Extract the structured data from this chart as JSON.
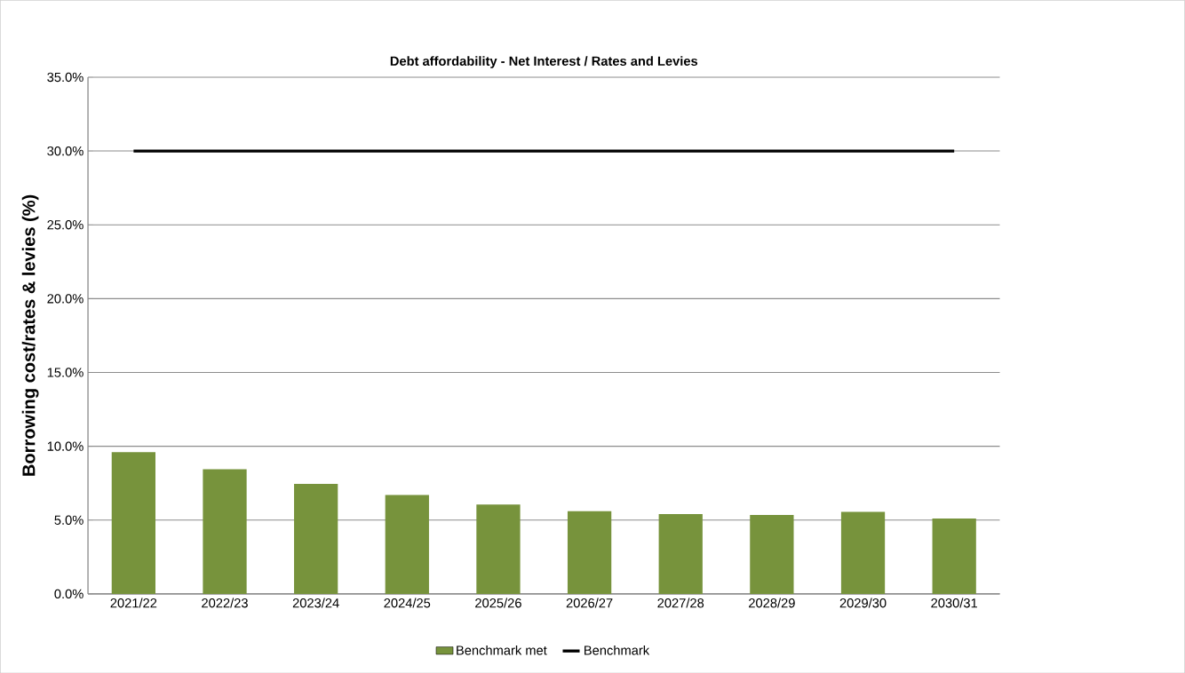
{
  "chart_data": {
    "type": "bar",
    "title": "Debt affordability - Net Interest / Rates and Levies",
    "ylabel": "Borrowing cost/rates & levies (%)",
    "categories": [
      "2021/22",
      "2022/23",
      "2023/24",
      "2024/25",
      "2025/26",
      "2026/27",
      "2027/28",
      "2028/29",
      "2029/30",
      "2030/31"
    ],
    "series": [
      {
        "name": "Benchmark met",
        "color": "#77933c",
        "values": [
          9.6,
          8.45,
          7.45,
          6.7,
          6.05,
          5.6,
          5.4,
          5.35,
          5.55,
          5.1
        ]
      },
      {
        "name": "Benchmark",
        "type": "line",
        "color": "#000000",
        "values": [
          30,
          30,
          30,
          30,
          30,
          30,
          30,
          30,
          30,
          30
        ]
      }
    ],
    "ylim": [
      0,
      35
    ],
    "yticks": [
      {
        "value": 0,
        "label": "0.0%"
      },
      {
        "value": 5,
        "label": "5.0%"
      },
      {
        "value": 10,
        "label": "10.0%"
      },
      {
        "value": 15,
        "label": "15.0%"
      },
      {
        "value": 20,
        "label": "20.0%"
      },
      {
        "value": 25,
        "label": "25.0%"
      },
      {
        "value": 30,
        "label": "30.0%"
      },
      {
        "value": 35,
        "label": "35.0%"
      }
    ],
    "grid": "y",
    "legend": "bottom"
  }
}
